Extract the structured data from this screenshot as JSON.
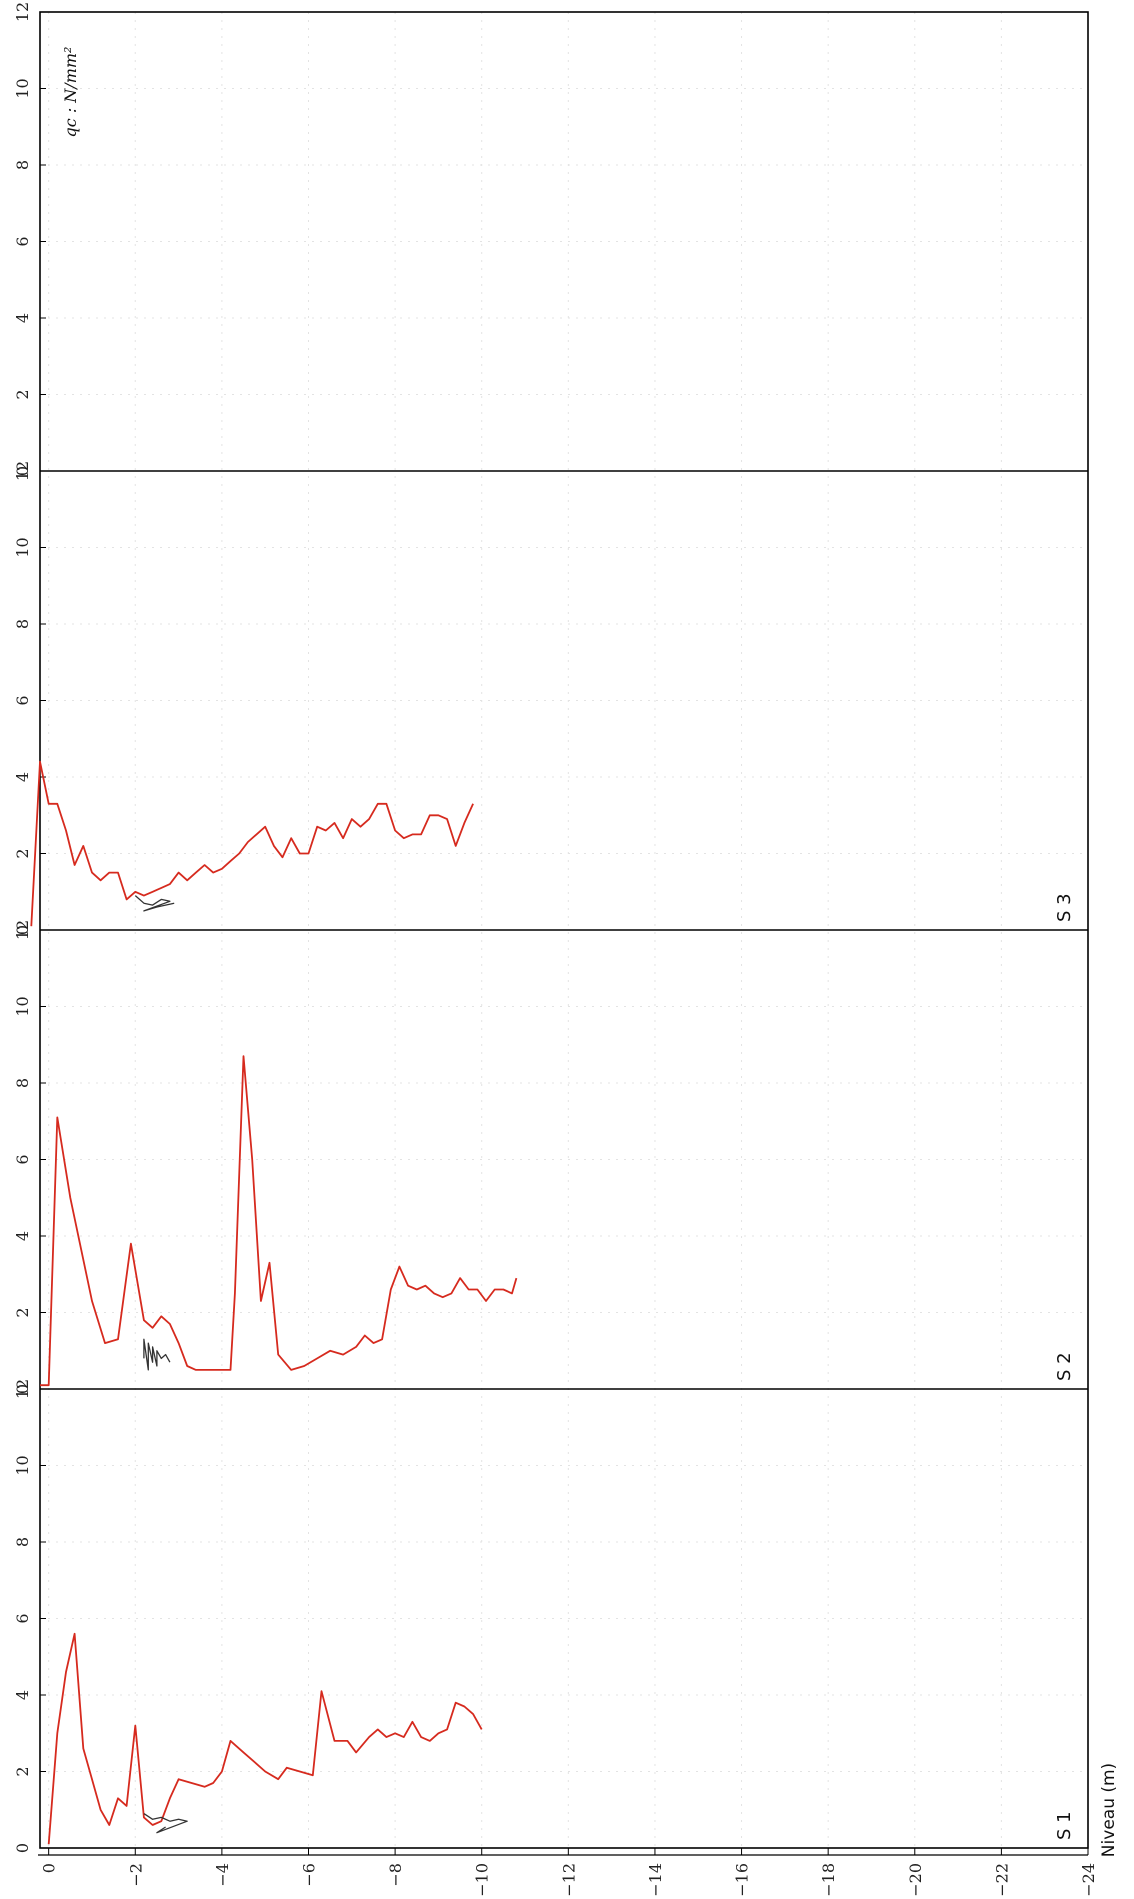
{
  "chart_data": {
    "type": "line",
    "orientation": "rotated-90",
    "ylabel": "Niveau (m)",
    "qc_label": "qc : N/mm²",
    "depth_ticks": [
      "0",
      "−2",
      "−4",
      "−6",
      "−8",
      "−10",
      "−12",
      "−14",
      "−16",
      "−18",
      "−20",
      "−22",
      "−24"
    ],
    "qc_ticks": [
      "0",
      "2",
      "4",
      "6",
      "8",
      "10",
      "12"
    ],
    "depth_range": [
      0.2,
      -24
    ],
    "qc_range": [
      0,
      12
    ],
    "grid": true,
    "colors": {
      "profile": "#d62a1e",
      "friction": "#333333",
      "axis": "#000000",
      "grid": "#e3e3e3"
    },
    "panels": [
      {
        "name": "S 1",
        "profile": [
          [
            0.0,
            0.1
          ],
          [
            -0.2,
            3.0
          ],
          [
            -0.4,
            4.6
          ],
          [
            -0.6,
            5.6
          ],
          [
            -0.8,
            2.6
          ],
          [
            -1.0,
            1.8
          ],
          [
            -1.2,
            1.0
          ],
          [
            -1.4,
            0.6
          ],
          [
            -1.6,
            1.3
          ],
          [
            -1.8,
            1.1
          ],
          [
            -2.0,
            3.2
          ],
          [
            -2.2,
            0.8
          ],
          [
            -2.4,
            0.6
          ],
          [
            -2.6,
            0.7
          ],
          [
            -2.8,
            1.3
          ],
          [
            -3.0,
            1.8
          ],
          [
            -3.3,
            1.7
          ],
          [
            -3.6,
            1.6
          ],
          [
            -3.8,
            1.7
          ],
          [
            -4.0,
            2.0
          ],
          [
            -4.2,
            2.8
          ],
          [
            -4.5,
            2.5
          ],
          [
            -4.8,
            2.2
          ],
          [
            -5.0,
            2.0
          ],
          [
            -5.3,
            1.8
          ],
          [
            -5.5,
            2.1
          ],
          [
            -5.8,
            2.0
          ],
          [
            -6.1,
            1.9
          ],
          [
            -6.3,
            4.1
          ],
          [
            -6.6,
            2.8
          ],
          [
            -6.9,
            2.8
          ],
          [
            -7.1,
            2.5
          ],
          [
            -7.4,
            2.9
          ],
          [
            -7.6,
            3.1
          ],
          [
            -7.8,
            2.9
          ],
          [
            -8.0,
            3.0
          ],
          [
            -8.2,
            2.9
          ],
          [
            -8.4,
            3.3
          ],
          [
            -8.6,
            2.9
          ],
          [
            -8.8,
            2.8
          ],
          [
            -9.0,
            3.0
          ],
          [
            -9.2,
            3.1
          ],
          [
            -9.4,
            3.8
          ],
          [
            -9.6,
            3.7
          ],
          [
            -9.8,
            3.5
          ],
          [
            -10.0,
            3.1
          ]
        ],
        "friction": [
          [
            -2.2,
            0.9
          ],
          [
            -2.4,
            0.75
          ],
          [
            -2.6,
            0.8
          ],
          [
            -2.8,
            0.7
          ],
          [
            -3.0,
            0.75
          ],
          [
            -3.2,
            0.7
          ],
          [
            -2.5,
            0.4
          ],
          [
            -2.7,
            0.55
          ]
        ]
      },
      {
        "name": "S 2",
        "profile": [
          [
            0.2,
            0.1
          ],
          [
            0.0,
            0.1
          ],
          [
            -0.2,
            7.1
          ],
          [
            -0.5,
            5.0
          ],
          [
            -1.0,
            2.3
          ],
          [
            -1.3,
            1.2
          ],
          [
            -1.6,
            1.3
          ],
          [
            -1.9,
            3.8
          ],
          [
            -2.2,
            1.8
          ],
          [
            -2.4,
            1.6
          ],
          [
            -2.6,
            1.9
          ],
          [
            -2.8,
            1.7
          ],
          [
            -3.0,
            1.2
          ],
          [
            -3.2,
            0.6
          ],
          [
            -3.4,
            0.5
          ],
          [
            -3.6,
            0.5
          ],
          [
            -3.8,
            0.5
          ],
          [
            -4.0,
            0.5
          ],
          [
            -4.2,
            0.5
          ],
          [
            -4.3,
            2.5
          ],
          [
            -4.5,
            8.7
          ],
          [
            -4.7,
            6.0
          ],
          [
            -4.9,
            2.3
          ],
          [
            -5.1,
            3.3
          ],
          [
            -5.3,
            0.9
          ],
          [
            -5.6,
            0.5
          ],
          [
            -5.9,
            0.6
          ],
          [
            -6.2,
            0.8
          ],
          [
            -6.5,
            1.0
          ],
          [
            -6.8,
            0.9
          ],
          [
            -7.1,
            1.1
          ],
          [
            -7.3,
            1.4
          ],
          [
            -7.5,
            1.2
          ],
          [
            -7.7,
            1.3
          ],
          [
            -7.9,
            2.6
          ],
          [
            -8.1,
            3.2
          ],
          [
            -8.3,
            2.7
          ],
          [
            -8.5,
            2.6
          ],
          [
            -8.7,
            2.7
          ],
          [
            -8.9,
            2.5
          ],
          [
            -9.1,
            2.4
          ],
          [
            -9.3,
            2.5
          ],
          [
            -9.5,
            2.9
          ],
          [
            -9.7,
            2.6
          ],
          [
            -9.9,
            2.6
          ],
          [
            -10.1,
            2.3
          ],
          [
            -10.3,
            2.6
          ],
          [
            -10.5,
            2.6
          ],
          [
            -10.7,
            2.5
          ],
          [
            -10.8,
            2.9
          ]
        ],
        "friction": [
          [
            -2.2,
            0.8
          ],
          [
            -2.2,
            1.3
          ],
          [
            -2.3,
            0.5
          ],
          [
            -2.3,
            1.2
          ],
          [
            -2.4,
            0.7
          ],
          [
            -2.4,
            1.1
          ],
          [
            -2.5,
            0.6
          ],
          [
            -2.5,
            1.0
          ],
          [
            -2.6,
            0.8
          ],
          [
            -2.7,
            0.9
          ],
          [
            -2.8,
            0.7
          ]
        ]
      },
      {
        "name": "S 3",
        "profile": [
          [
            0.4,
            0.1
          ],
          [
            0.2,
            4.4
          ],
          [
            0.0,
            3.3
          ],
          [
            -0.2,
            3.3
          ],
          [
            -0.4,
            2.6
          ],
          [
            -0.6,
            1.7
          ],
          [
            -0.8,
            2.2
          ],
          [
            -1.0,
            1.5
          ],
          [
            -1.2,
            1.3
          ],
          [
            -1.4,
            1.5
          ],
          [
            -1.6,
            1.5
          ],
          [
            -1.8,
            0.8
          ],
          [
            -2.0,
            1.0
          ],
          [
            -2.2,
            0.9
          ],
          [
            -2.4,
            1.0
          ],
          [
            -2.6,
            1.1
          ],
          [
            -2.8,
            1.2
          ],
          [
            -3.0,
            1.5
          ],
          [
            -3.2,
            1.3
          ],
          [
            -3.4,
            1.5
          ],
          [
            -3.6,
            1.7
          ],
          [
            -3.8,
            1.5
          ],
          [
            -4.0,
            1.6
          ],
          [
            -4.2,
            1.8
          ],
          [
            -4.4,
            2.0
          ],
          [
            -4.6,
            2.3
          ],
          [
            -4.8,
            2.5
          ],
          [
            -5.0,
            2.7
          ],
          [
            -5.2,
            2.2
          ],
          [
            -5.4,
            1.9
          ],
          [
            -5.6,
            2.4
          ],
          [
            -5.8,
            2.0
          ],
          [
            -6.0,
            2.0
          ],
          [
            -6.2,
            2.7
          ],
          [
            -6.4,
            2.6
          ],
          [
            -6.6,
            2.8
          ],
          [
            -6.8,
            2.4
          ],
          [
            -7.0,
            2.9
          ],
          [
            -7.2,
            2.7
          ],
          [
            -7.4,
            2.9
          ],
          [
            -7.6,
            3.3
          ],
          [
            -7.8,
            3.3
          ],
          [
            -8.0,
            2.6
          ],
          [
            -8.2,
            2.4
          ],
          [
            -8.4,
            2.5
          ],
          [
            -8.6,
            2.5
          ],
          [
            -8.8,
            3.0
          ],
          [
            -9.0,
            3.0
          ],
          [
            -9.2,
            2.9
          ],
          [
            -9.4,
            2.2
          ],
          [
            -9.6,
            2.8
          ],
          [
            -9.8,
            3.3
          ]
        ],
        "friction": [
          [
            -2.0,
            0.9
          ],
          [
            -2.2,
            0.7
          ],
          [
            -2.4,
            0.65
          ],
          [
            -2.6,
            0.8
          ],
          [
            -2.8,
            0.75
          ],
          [
            -2.2,
            0.5
          ],
          [
            -2.5,
            0.6
          ],
          [
            -2.9,
            0.7
          ]
        ]
      },
      {
        "name": "",
        "profile": [],
        "friction": []
      }
    ]
  }
}
